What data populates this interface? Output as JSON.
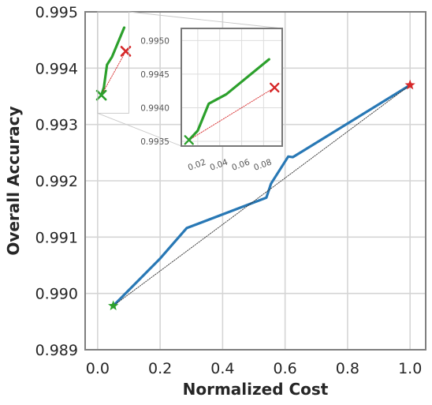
{
  "chart_data": [
    {
      "type": "line",
      "xlabel": "Normalized Cost",
      "ylabel": "Overall Accuracy",
      "xlim": [
        -0.04,
        1.05
      ],
      "ylim": [
        0.989,
        0.995
      ],
      "xticks": [
        0.0,
        0.2,
        0.4,
        0.6,
        0.8,
        1.0
      ],
      "xtick_labels": [
        "0.0",
        "0.2",
        "0.4",
        "0.6",
        "0.8",
        "1.0"
      ],
      "yticks": [
        0.989,
        0.99,
        0.991,
        0.992,
        0.993,
        0.994,
        0.995
      ],
      "ytick_labels": [
        "0.989",
        "0.990",
        "0.991",
        "0.992",
        "0.993",
        "0.994",
        "0.995"
      ],
      "grid": true,
      "series": [
        {
          "kind": "blue-curve",
          "color": "#2878b5",
          "x": [
            0.05,
            0.2,
            0.285,
            0.54,
            0.555,
            0.61,
            0.625,
            1.0
          ],
          "y": [
            0.98978,
            0.99062,
            0.99116,
            0.9917,
            0.99195,
            0.99243,
            0.99242,
            0.9937
          ]
        },
        {
          "kind": "green-curve",
          "color": "#2ca02c",
          "x": [
            0.012,
            0.02,
            0.03,
            0.046,
            0.085
          ],
          "y": [
            0.99352,
            0.99366,
            0.99406,
            0.9942,
            0.99472
          ]
        },
        {
          "kind": "black-dotted-reference",
          "color": "#333333",
          "x": [
            0.05,
            1.0
          ],
          "y": [
            0.98978,
            0.9937
          ]
        },
        {
          "kind": "red-dotted-reference",
          "color": "#d62728",
          "x": [
            0.012,
            0.09
          ],
          "y": [
            0.99352,
            0.9943
          ]
        }
      ],
      "markers": [
        {
          "kind": "green-x",
          "color": "#2ca02c",
          "x": 0.012,
          "y": 0.99352
        },
        {
          "kind": "red-x",
          "color": "#d62728",
          "x": 0.09,
          "y": 0.9943
        },
        {
          "kind": "green-star",
          "color": "#2ca02c",
          "x": 0.05,
          "y": 0.98978
        },
        {
          "kind": "red-star",
          "color": "#d62728",
          "x": 1.0,
          "y": 0.9937
        }
      ],
      "zoom_box": {
        "xlim": [
          0.0,
          0.1
        ],
        "ylim": [
          0.9932,
          0.995
        ]
      }
    },
    {
      "type": "line",
      "role": "inset",
      "xlim": [
        0.005,
        0.097
      ],
      "ylim": [
        0.99343,
        0.99518
      ],
      "xticks": [
        0.02,
        0.04,
        0.06,
        0.08
      ],
      "xtick_labels": [
        "0.02",
        "0.04",
        "0.06",
        "0.08"
      ],
      "yticks": [
        0.9935,
        0.994,
        0.9945,
        0.995
      ],
      "ytick_labels": [
        "0.9935",
        "0.9940",
        "0.9945",
        "0.9950"
      ],
      "grid": true
    }
  ]
}
